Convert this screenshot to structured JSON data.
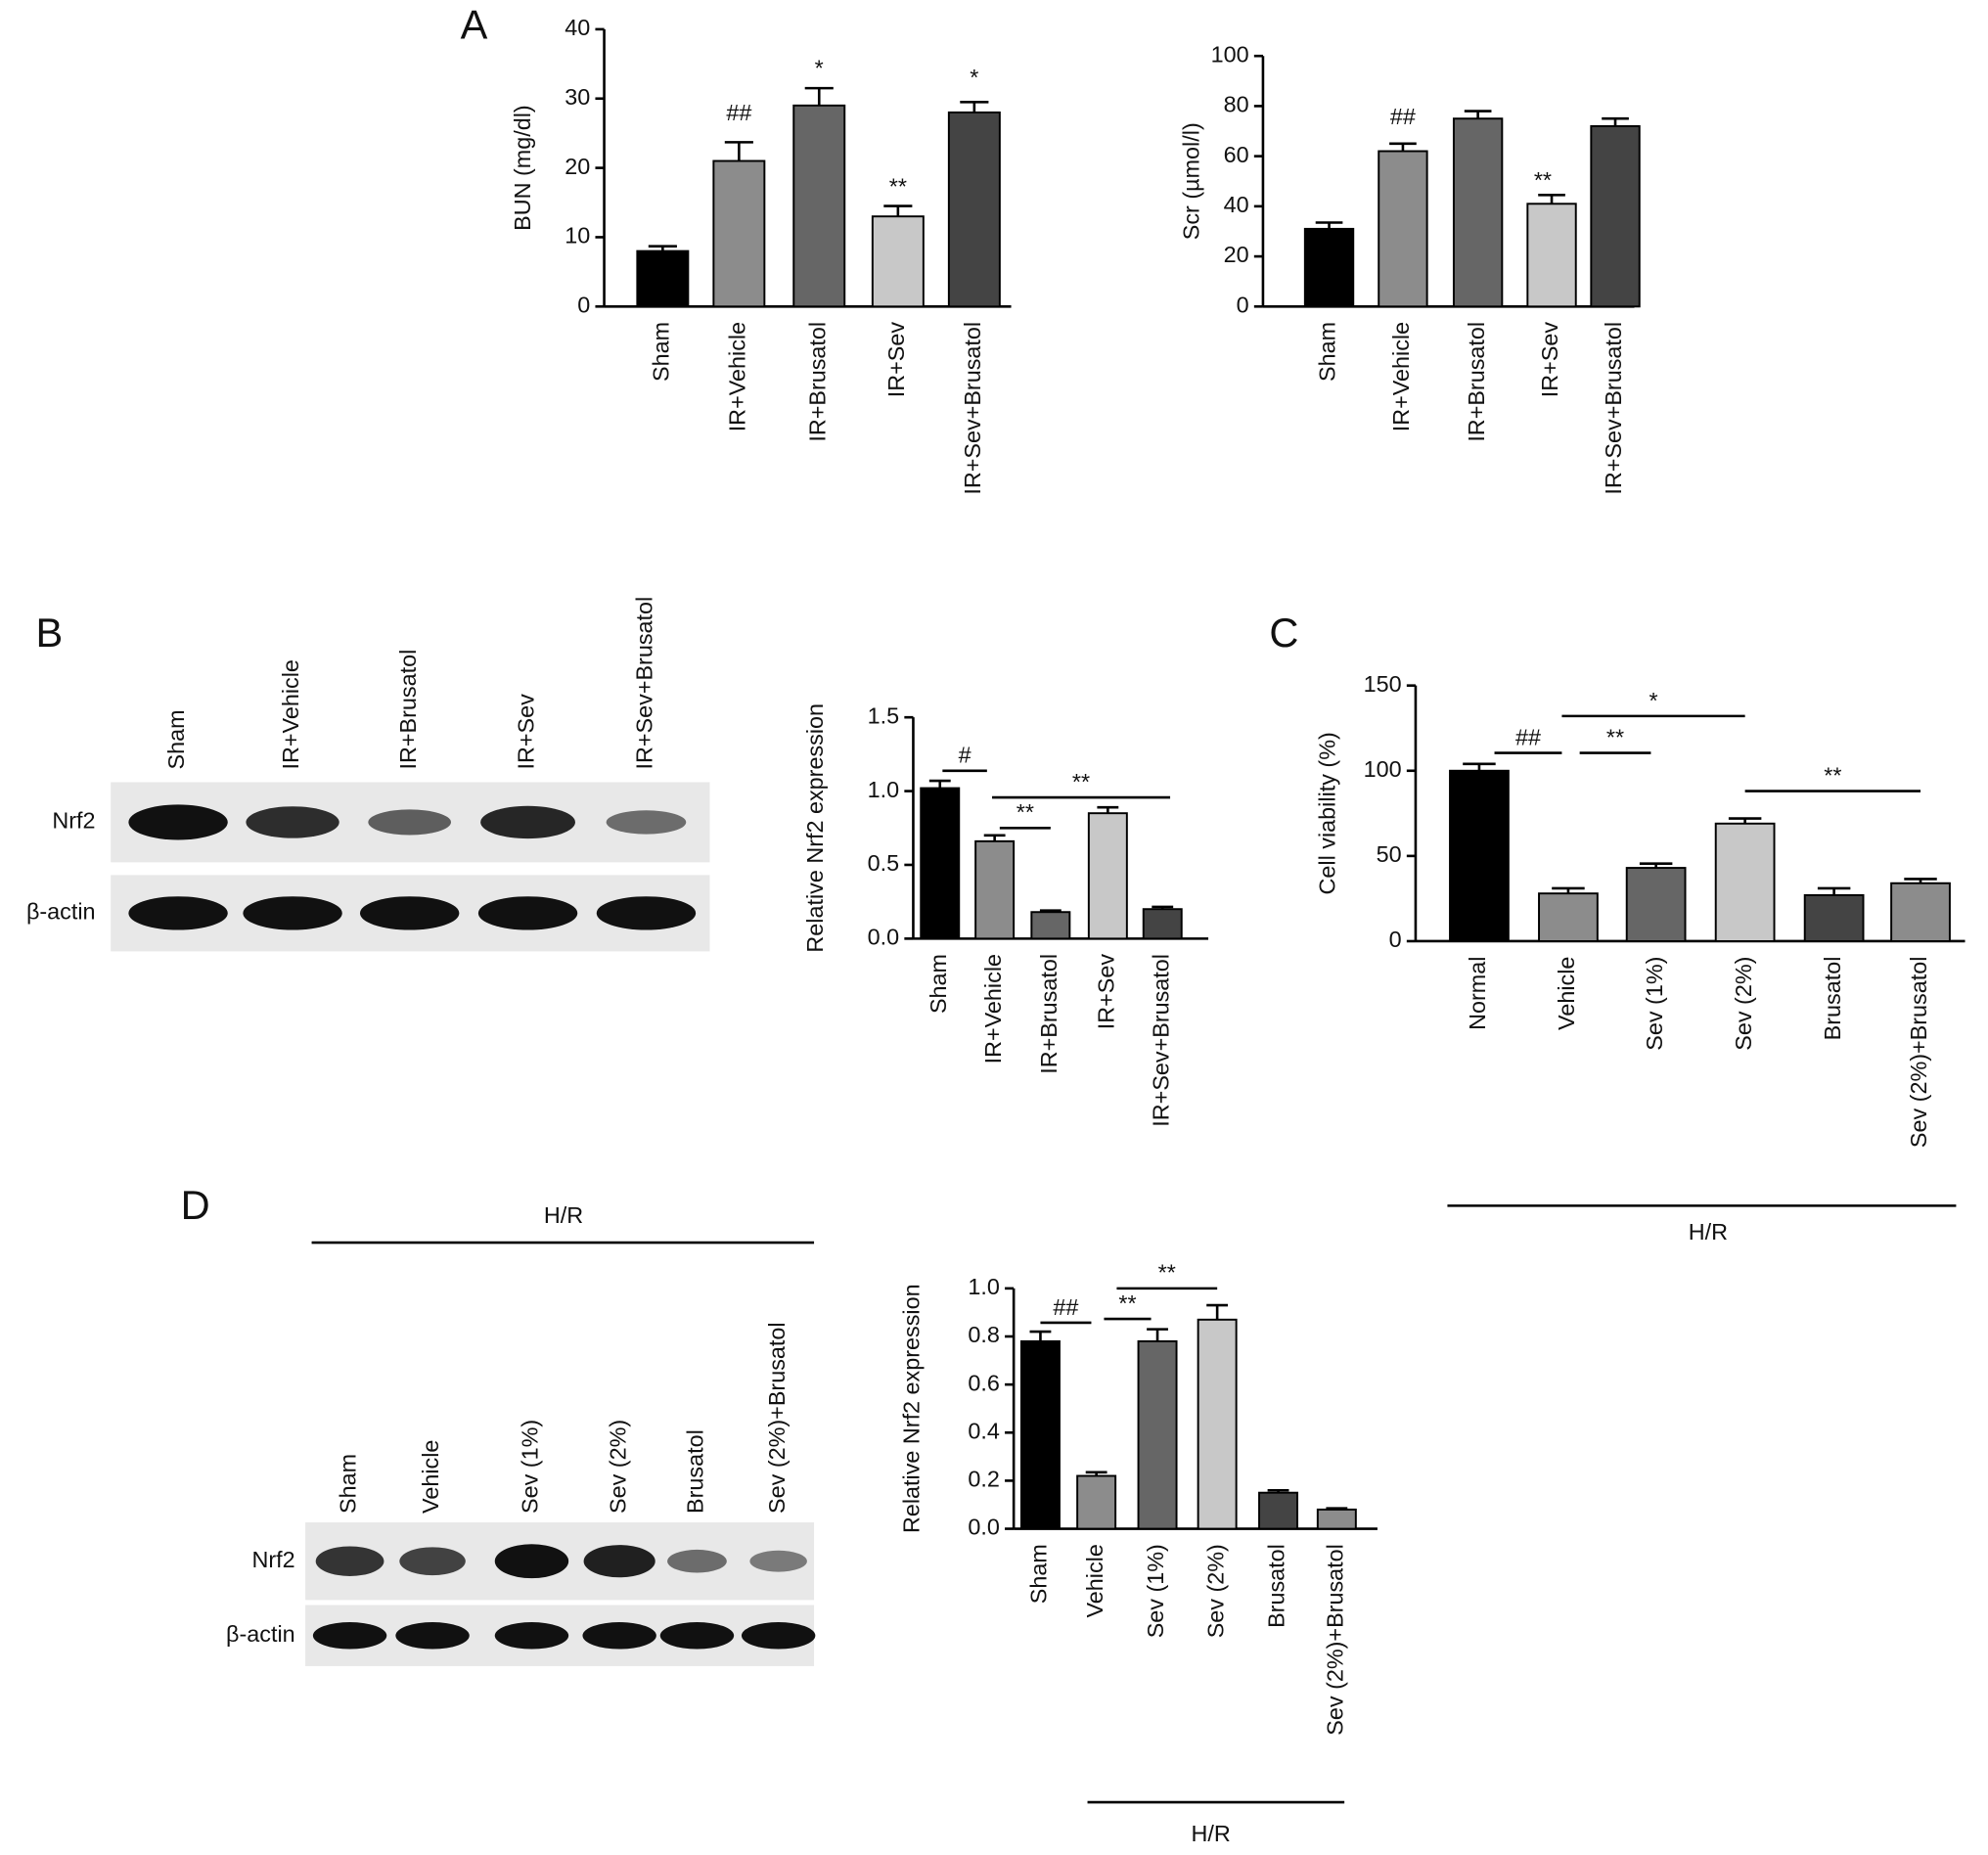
{
  "panels": [
    "A",
    "B",
    "C",
    "D"
  ],
  "group_labels": [
    "H/R",
    "H/R",
    "H/R"
  ],
  "blots": [
    {
      "lanes": [
        "Sham",
        "IR+Vehicle",
        "IR+Brusatol",
        "IR+Sev",
        "IR+Sev+Brusatol"
      ],
      "rows": [
        "Nrf2",
        "β-actin"
      ]
    },
    {
      "lanes": [
        "Sham",
        "Vehicle",
        "Sev (1%)",
        "Sev (2%)",
        "Brusatol",
        "Sev (2%)+Brusatol"
      ],
      "rows": [
        "Nrf2",
        "β-actin"
      ]
    }
  ],
  "chart_data": [
    {
      "type": "bar",
      "y_label": "BUN (mg/dl)",
      "categories": [
        "Sham",
        "IR+Vehicle",
        "IR+Brusatol",
        "IR+Sev",
        "IR+Sev+Brusatol"
      ],
      "values": [
        8,
        21,
        29,
        13,
        28
      ],
      "errors": [
        0.7,
        2.7,
        2.5,
        1.5,
        1.5
      ],
      "colors": [
        "#000000",
        "#8c8c8c",
        "#666666",
        "#c8c8c8",
        "#444444"
      ],
      "ylim": [
        0,
        40
      ],
      "yticks": [
        0,
        10,
        20,
        30,
        40
      ],
      "annotations": [
        "##",
        "*",
        "**",
        "*"
      ]
    },
    {
      "type": "bar",
      "y_label": "Scr (µmol/l)",
      "categories": [
        "Sham",
        "IR+Vehicle",
        "IR+Brusatol",
        "IR+Sev",
        "IR+Sev+Brusatol"
      ],
      "values": [
        31,
        62,
        75,
        41,
        72
      ],
      "errors": [
        2.5,
        3,
        3,
        3.5,
        3
      ],
      "colors": [
        "#000000",
        "#8c8c8c",
        "#666666",
        "#c8c8c8",
        "#444444"
      ],
      "ylim": [
        0,
        100
      ],
      "yticks": [
        0,
        20,
        40,
        60,
        80,
        100
      ],
      "annotations": [
        "##",
        "**"
      ]
    },
    {
      "type": "bar",
      "y_label": "Relative Nrf2 expression",
      "categories": [
        "Sham",
        "IR+Vehicle",
        "IR+Brusatol",
        "IR+Sev",
        "IR+Sev+Brusatol"
      ],
      "values": [
        1.02,
        0.66,
        0.18,
        0.85,
        0.2
      ],
      "errors": [
        0.05,
        0.04,
        0.01,
        0.04,
        0.015
      ],
      "colors": [
        "#000000",
        "#8c8c8c",
        "#666666",
        "#c8c8c8",
        "#444444"
      ],
      "ylim": [
        0,
        1.5
      ],
      "yticks": [
        {
          "value": 0,
          "label": "0.0"
        },
        {
          "value": 0.5,
          "label": "0.5"
        },
        {
          "value": 1,
          "label": "1.0"
        },
        {
          "value": 1.5,
          "label": "1.5"
        }
      ],
      "annotations": [
        "#",
        "**",
        "**"
      ]
    },
    {
      "type": "bar",
      "y_label": "Cell viability (%)",
      "categories": [
        "Normal",
        "Vehicle",
        "Sev (1%)",
        "Sev (2%)",
        "Brusatol",
        "Sev (2%)+Brusatol"
      ],
      "values": [
        100,
        28,
        43,
        69,
        27,
        34
      ],
      "errors": [
        4,
        3,
        2.5,
        3,
        4,
        2.5
      ],
      "colors": [
        "#000000",
        "#8c8c8c",
        "#666666",
        "#c8c8c8",
        "#444444",
        "#8c8c8c"
      ],
      "ylim": [
        0,
        150
      ],
      "yticks": [
        0,
        50,
        100,
        150
      ],
      "annotations": [
        "##",
        "*",
        "**",
        "**"
      ]
    },
    {
      "type": "bar",
      "y_label": "Relative Nrf2 expression",
      "categories": [
        "Sham",
        "Vehicle",
        "Sev (1%)",
        "Sev (2%)",
        "Brusatol",
        "Sev (2%)+Brusatol"
      ],
      "values": [
        0.78,
        0.22,
        0.78,
        0.87,
        0.15,
        0.08
      ],
      "errors": [
        0.04,
        0.015,
        0.05,
        0.06,
        0.01,
        0.005
      ],
      "colors": [
        "#000000",
        "#8c8c8c",
        "#666666",
        "#c8c8c8",
        "#444444",
        "#8c8c8c"
      ],
      "ylim": [
        0,
        1
      ],
      "yticks": [
        {
          "value": 0,
          "label": "0.0"
        },
        {
          "value": 0.2,
          "label": "0.2"
        },
        {
          "value": 0.4,
          "label": "0.4"
        },
        {
          "value": 0.6,
          "label": "0.6"
        },
        {
          "value": 0.8,
          "label": "0.8"
        },
        {
          "value": 1,
          "label": "1.0"
        }
      ],
      "annotations": [
        "##",
        "**",
        "**"
      ]
    }
  ]
}
